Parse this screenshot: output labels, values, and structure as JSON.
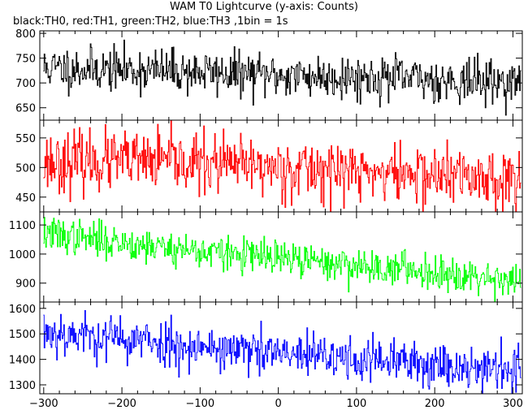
{
  "title": "WAM T0 Lightcurve (y-axis: Counts)",
  "subtitle": "black:TH0, red:TH1, green:TH2, blue:TH3 ,1bin = 1s",
  "chart_data": {
    "type": "line",
    "title": "WAM T0 Lightcurve (y-axis: Counts)",
    "subtitle": "black:TH0, red:TH1, green:TH2, blue:TH3 ,1bin = 1s",
    "xlim": [
      -305,
      312
    ],
    "xticks": [
      -300,
      -200,
      -100,
      0,
      100,
      200,
      300
    ],
    "xtick_labels": [
      "−300",
      "−200",
      "−100",
      "0",
      "100",
      "200",
      "300"
    ],
    "panels": [
      {
        "color": "#000000",
        "ylim": [
          625,
          805
        ],
        "yticks": [
          650,
          700,
          750,
          800
        ],
        "ytick_labels": [
          "650",
          "700",
          "750",
          "800"
        ],
        "trend": [
          [
            -300,
            730
          ],
          [
            -150,
            725
          ],
          [
            0,
            715
          ],
          [
            150,
            710
          ],
          [
            310,
            700
          ]
        ],
        "noise_sigma": 22,
        "seed": 11
      },
      {
        "color": "#ff0000",
        "ylim": [
          425,
          580
        ],
        "yticks": [
          450,
          500,
          550
        ],
        "ytick_labels": [
          "450",
          "500",
          "550"
        ],
        "trend": [
          [
            -300,
            510
          ],
          [
            -150,
            510
          ],
          [
            0,
            500
          ],
          [
            150,
            490
          ],
          [
            310,
            480
          ]
        ],
        "noise_sigma": 25,
        "seed": 23
      },
      {
        "color": "#00ff00",
        "ylim": [
          835,
          1145
        ],
        "yticks": [
          900,
          1000,
          1100
        ],
        "ytick_labels": [
          "900",
          "1000",
          "1100"
        ],
        "trend": [
          [
            -300,
            1070
          ],
          [
            -200,
            1040
          ],
          [
            -100,
            1010
          ],
          [
            0,
            985
          ],
          [
            100,
            960
          ],
          [
            200,
            940
          ],
          [
            310,
            910
          ]
        ],
        "noise_sigma": 30,
        "seed": 37
      },
      {
        "color": "#0000ff",
        "ylim": [
          1265,
          1625
        ],
        "yticks": [
          1300,
          1400,
          1500,
          1600
        ],
        "ytick_labels": [
          "1300",
          "1400",
          "1500",
          "1600"
        ],
        "trend": [
          [
            -300,
            1510
          ],
          [
            -200,
            1480
          ],
          [
            -100,
            1450
          ],
          [
            0,
            1420
          ],
          [
            100,
            1400
          ],
          [
            200,
            1380
          ],
          [
            310,
            1360
          ]
        ],
        "noise_sigma": 45,
        "seed": 53
      }
    ]
  }
}
